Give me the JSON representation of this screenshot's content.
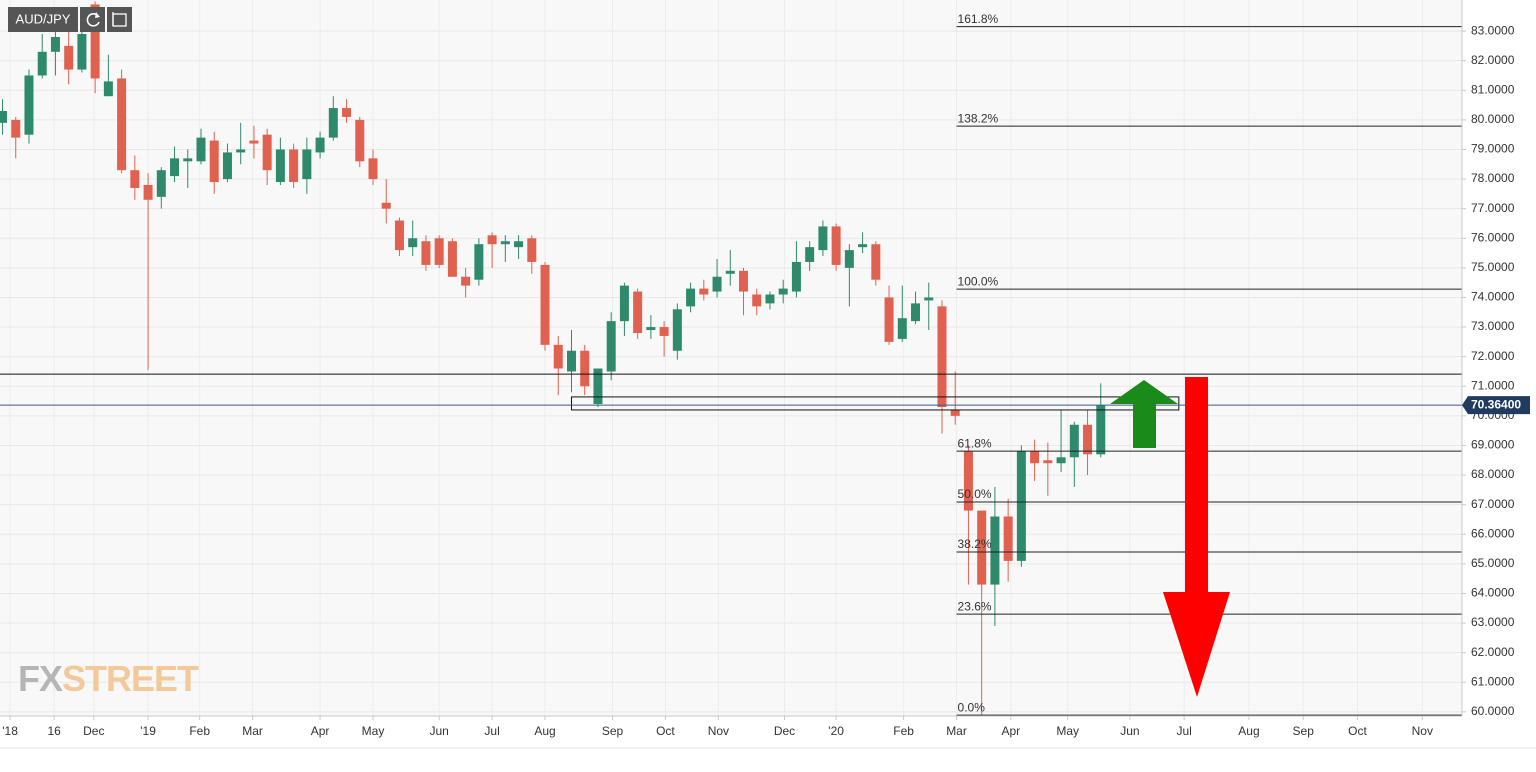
{
  "chart_data": {
    "type": "candlestick",
    "title": "AUD/JPY",
    "watermark": [
      "FX",
      "STREET"
    ],
    "up_color": "#2f8a6d",
    "down_color": "#e0614f",
    "grid": true,
    "x": [
      0,
      1,
      2,
      3,
      4,
      5,
      6,
      7,
      8,
      9,
      10,
      11,
      12,
      13,
      14,
      15,
      16,
      17,
      18,
      19,
      20,
      21,
      22,
      23,
      24,
      25,
      26,
      27,
      28,
      29,
      30,
      31,
      32,
      33,
      34,
      35,
      36,
      37,
      38,
      39,
      40,
      41,
      42,
      43,
      44,
      45,
      46,
      47,
      48,
      49,
      50,
      51,
      52,
      53,
      54,
      55,
      56,
      57,
      58,
      59,
      60,
      61,
      62,
      63,
      64,
      65,
      66,
      67,
      68,
      69,
      70,
      71,
      72,
      73,
      74,
      75,
      76,
      77,
      78,
      79,
      80,
      81,
      82,
      83
    ],
    "open": [
      79.9,
      80.0,
      79.5,
      81.5,
      82.3,
      82.5,
      81.7,
      83.9,
      80.8,
      81.4,
      78.3,
      77.8,
      77.4,
      78.1,
      78.6,
      78.6,
      79.3,
      78.0,
      78.9,
      79.3,
      79.5,
      77.9,
      79.0,
      78.0,
      78.9,
      79.4,
      80.4,
      80.0,
      78.7,
      77.2,
      76.6,
      75.7,
      75.9,
      76.0,
      75.9,
      74.7,
      74.6,
      76.1,
      75.8,
      75.7,
      76.0,
      75.1,
      72.4,
      71.5,
      72.2,
      70.4,
      71.5,
      73.2,
      74.2,
      72.9,
      73.0,
      72.2,
      73.7,
      74.3,
      74.2,
      74.8,
      74.9,
      74.1,
      73.8,
      74.1,
      74.2,
      75.2,
      75.6,
      76.4,
      75.0,
      75.7,
      75.8,
      74.0,
      72.6,
      73.2,
      73.9,
      73.7,
      70.2,
      68.8,
      66.8,
      64.3,
      66.6,
      65.1,
      68.8,
      68.5,
      68.4,
      68.6,
      69.7,
      68.7
    ],
    "high": [
      80.7,
      80.1,
      81.7,
      82.9,
      83.5,
      83.0,
      83.6,
      84.0,
      82.2,
      81.7,
      78.8,
      78.2,
      78.4,
      79.1,
      79.0,
      79.7,
      79.6,
      79.2,
      79.9,
      79.8,
      79.7,
      79.4,
      79.2,
      79.4,
      79.6,
      80.8,
      80.7,
      80.1,
      79.0,
      78.0,
      76.7,
      76.6,
      76.1,
      76.1,
      76.0,
      75.0,
      76.0,
      76.2,
      76.1,
      76.1,
      76.1,
      75.2,
      72.7,
      72.9,
      72.4,
      71.6,
      73.5,
      74.5,
      74.3,
      73.4,
      73.2,
      73.8,
      74.5,
      74.6,
      75.3,
      75.6,
      75.0,
      74.3,
      74.2,
      74.6,
      75.9,
      75.9,
      76.6,
      76.5,
      75.8,
      76.2,
      75.9,
      74.4,
      74.4,
      74.2,
      74.5,
      73.9,
      71.5,
      69.0,
      66.8,
      67.6,
      67.2,
      69.0,
      69.2,
      69.1,
      70.2,
      69.8,
      70.2,
      71.1
    ],
    "low": [
      79.5,
      78.7,
      79.2,
      81.4,
      81.5,
      81.2,
      81.6,
      80.9,
      80.8,
      78.2,
      77.3,
      71.55,
      77.0,
      77.9,
      77.7,
      78.5,
      77.5,
      77.9,
      78.5,
      78.7,
      77.8,
      77.8,
      77.7,
      77.5,
      78.7,
      79.3,
      79.9,
      78.4,
      77.8,
      76.5,
      75.4,
      75.4,
      74.9,
      75.0,
      74.7,
      74.0,
      74.4,
      75.0,
      75.2,
      75.3,
      74.8,
      72.2,
      70.7,
      70.8,
      70.7,
      70.3,
      71.2,
      72.7,
      72.6,
      72.6,
      72.0,
      71.9,
      73.5,
      73.9,
      74.0,
      74.4,
      73.4,
      73.4,
      73.6,
      73.8,
      74.0,
      74.9,
      75.4,
      74.9,
      73.7,
      75.5,
      74.4,
      72.4,
      72.5,
      73.1,
      72.9,
      69.4,
      69.7,
      64.3,
      59.9,
      62.9,
      64.4,
      64.9,
      67.8,
      67.3,
      68.1,
      67.6,
      68.0,
      68.6
    ],
    "close": [
      80.3,
      79.4,
      81.5,
      82.3,
      82.8,
      81.7,
      82.9,
      81.4,
      81.3,
      78.3,
      77.7,
      77.3,
      78.3,
      78.7,
      78.7,
      79.4,
      77.9,
      78.9,
      79.0,
      79.2,
      78.3,
      79.0,
      77.9,
      79.0,
      79.4,
      80.4,
      80.1,
      78.6,
      78.0,
      77.0,
      75.6,
      76.0,
      75.1,
      75.1,
      74.7,
      74.4,
      75.8,
      75.8,
      75.9,
      75.9,
      75.2,
      72.4,
      71.6,
      72.2,
      71.0,
      71.6,
      73.2,
      74.4,
      72.8,
      73.0,
      72.7,
      73.6,
      74.3,
      74.1,
      74.7,
      74.9,
      74.2,
      73.7,
      74.1,
      74.3,
      75.2,
      75.7,
      76.4,
      75.1,
      75.6,
      75.8,
      74.6,
      72.5,
      73.3,
      73.8,
      74.0,
      70.3,
      70.0,
      66.8,
      64.3,
      66.6,
      65.1,
      68.8,
      68.4,
      68.4,
      68.6,
      69.7,
      68.7,
      70.364
    ],
    "xlim": [
      -0.19,
      110.3
    ],
    "xticks": [
      {
        "value": 0.57,
        "label": "'18"
      },
      {
        "value": 3.9,
        "label": "16"
      },
      {
        "value": 6.9,
        "label": "Dec"
      },
      {
        "value": 11,
        "label": "'19"
      },
      {
        "value": 14.9,
        "label": "Feb"
      },
      {
        "value": 18.9,
        "label": "Mar"
      },
      {
        "value": 24,
        "label": "Apr"
      },
      {
        "value": 28,
        "label": "May"
      },
      {
        "value": 33,
        "label": "Jun"
      },
      {
        "value": 37,
        "label": "Jul"
      },
      {
        "value": 41,
        "label": "Aug"
      },
      {
        "value": 46.1,
        "label": "Sep"
      },
      {
        "value": 50.1,
        "label": "Oct"
      },
      {
        "value": 54.1,
        "label": "Nov"
      },
      {
        "value": 59.1,
        "label": "Dec"
      },
      {
        "value": 63,
        "label": "'20"
      },
      {
        "value": 68.1,
        "label": "Feb"
      },
      {
        "value": 72.1,
        "label": "Mar"
      },
      {
        "value": 76.2,
        "label": "Apr"
      },
      {
        "value": 80.5,
        "label": "May"
      },
      {
        "value": 85.2,
        "label": "Jun"
      },
      {
        "value": 89.3,
        "label": "Jul"
      },
      {
        "value": 94.2,
        "label": "Aug"
      },
      {
        "value": 98.3,
        "label": "Sep"
      },
      {
        "value": 102.4,
        "label": "Oct"
      },
      {
        "value": 107.3,
        "label": "Nov"
      }
    ],
    "ylim": [
      59.86,
      84.05
    ],
    "yticks": [
      {
        "value": 60,
        "label": "60.0000"
      },
      {
        "value": 61,
        "label": "61.0000"
      },
      {
        "value": 62,
        "label": "62.0000"
      },
      {
        "value": 63,
        "label": "63.0000"
      },
      {
        "value": 64,
        "label": "64.0000"
      },
      {
        "value": 65,
        "label": "65.0000"
      },
      {
        "value": 66,
        "label": "66.0000"
      },
      {
        "value": 67,
        "label": "67.0000"
      },
      {
        "value": 68,
        "label": "68.0000"
      },
      {
        "value": 69,
        "label": "69.0000"
      },
      {
        "value": 70,
        "label": "70.0000"
      },
      {
        "value": 71,
        "label": "71.0000"
      },
      {
        "value": 72,
        "label": "72.0000"
      },
      {
        "value": 73,
        "label": "73.0000"
      },
      {
        "value": 74,
        "label": "74.0000"
      },
      {
        "value": 75,
        "label": "75.0000"
      },
      {
        "value": 76,
        "label": "76.0000"
      },
      {
        "value": 77,
        "label": "77.0000"
      },
      {
        "value": 78,
        "label": "78.0000"
      },
      {
        "value": 79,
        "label": "79.0000"
      },
      {
        "value": 80,
        "label": "80.0000"
      },
      {
        "value": 81,
        "label": "81.0000"
      },
      {
        "value": 82,
        "label": "82.0000"
      },
      {
        "value": 83,
        "label": "83.0000"
      }
    ],
    "fib_x_start": 72.1,
    "fib_levels": [
      {
        "value": 83.15,
        "label": "161.8%"
      },
      {
        "value": 79.79,
        "label": "138.2%"
      },
      {
        "value": 74.28,
        "label": "100.0%"
      },
      {
        "value": 68.81,
        "label": "61.8%"
      },
      {
        "value": 67.09,
        "label": "50.0%"
      },
      {
        "value": 65.4,
        "label": "38.2%"
      },
      {
        "value": 63.3,
        "label": "23.6%"
      },
      {
        "value": 59.89,
        "label": "0.0%"
      }
    ],
    "support_line": 71.41,
    "zone": {
      "x": [
        43,
        88.9
      ],
      "y": [
        70.2,
        70.64
      ]
    },
    "current_price": {
      "value": 70.364,
      "label": "70.36400"
    }
  }
}
